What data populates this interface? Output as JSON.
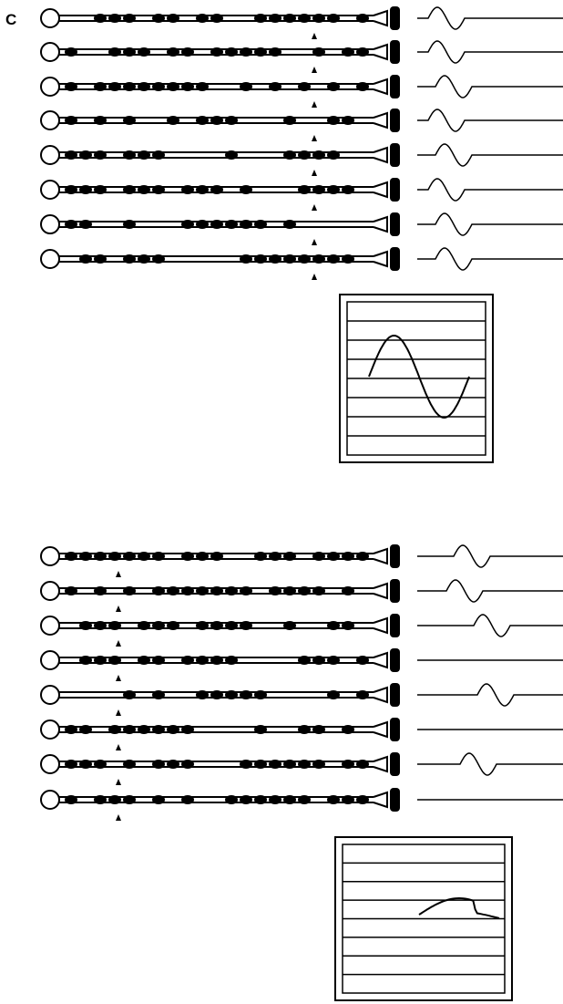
{
  "panel_label": "C"
}
